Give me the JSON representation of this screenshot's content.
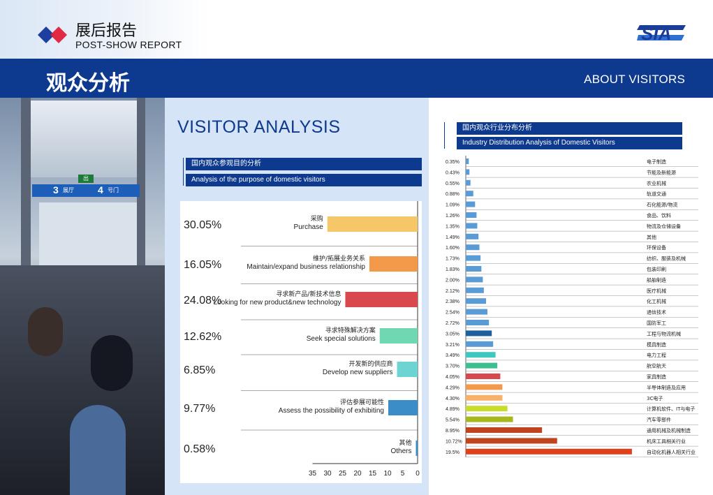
{
  "header": {
    "title_cn": "展后报告",
    "title_en": "POST-SHOW REPORT",
    "logo_text": "SIA"
  },
  "band": {
    "title_cn": "观众分析",
    "title_en": "ABOUT VISITORS"
  },
  "photo": {
    "sign_left": "3",
    "sign_left_label": "展厅",
    "sign_right": "4",
    "sign_right_label": "号门",
    "exit_text": "出"
  },
  "left": {
    "title": "VISITOR ANALYSIS",
    "heading_cn": "国内观众参观目的分析",
    "heading_en": "Analysis of the purpose of domestic visitors"
  },
  "right": {
    "heading_cn": "国内观众行业分布分析",
    "heading_en": "Industry Distribution Analysis of Domestic Visitors"
  },
  "chart_data": [
    {
      "type": "bar",
      "orientation": "horizontal-reversed",
      "title": "国内观众参观目的分析 / Analysis of the purpose of domestic visitors",
      "categories_cn": [
        "采购",
        "维护/拓展业务关系",
        "寻求新产品/新技术信息",
        "寻求特殊解决方案",
        "开发新的供应商",
        "评估参展可能性",
        "其他"
      ],
      "categories_en": [
        "Purchase",
        "Maintain/expand business relationship",
        "Looking for new product&new technology",
        "Seek special solutions",
        "Develop new suppliers",
        "Assess the possibility of exhibiting",
        "Others"
      ],
      "values": [
        30.05,
        16.05,
        24.08,
        12.62,
        6.85,
        9.77,
        0.58
      ],
      "labels": [
        "30.05%",
        "16.05%",
        "24.08%",
        "12.62%",
        "6.85%",
        "9.77%",
        "0.58%"
      ],
      "colors": [
        "#f6c768",
        "#f2994a",
        "#d9484c",
        "#6fd8b2",
        "#6dd3d3",
        "#3b8dc8",
        "#3b8dc8"
      ],
      "xticks": [
        "35",
        "30",
        "25",
        "20",
        "15",
        "10",
        "5",
        "0"
      ],
      "xlim": [
        35,
        0
      ],
      "grid": false
    },
    {
      "type": "bar",
      "orientation": "horizontal",
      "title": "国内观众行业分布分析 / Industry Distribution Analysis of Domestic Visitors",
      "categories": [
        "电子制造",
        "节能及新能源",
        "农业机械",
        "轨道交通",
        "石化能源/物流",
        "食品、饮料",
        "物流及仓储设备",
        "其他",
        "环保设备",
        "纺织、服装及机械",
        "包装印刷",
        "船舶制造",
        "医疗机械",
        "化工机械",
        "通信技术",
        "国防军工",
        "工程与物流机械",
        "模具制造",
        "电力工程",
        "航空航天",
        "家具制造",
        "半导体制造及应用",
        "3C电子",
        "计算机软件、IT与电子",
        "汽车零部件",
        "通用机械及机械制造",
        "机床工具相关行业",
        "自动化机器人相关行业"
      ],
      "labels": [
        "0.35%",
        "0.43%",
        "0.55%",
        "0.88%",
        "1.09%",
        "1.26%",
        "1.35%",
        "1.49%",
        "1.60%",
        "1.73%",
        "1.83%",
        "2.00%",
        "2.12%",
        "2.38%",
        "2.54%",
        "2.72%",
        "3.05%",
        "3.21%",
        "3.49%",
        "3.70%",
        "4.05%",
        "4.29%",
        "4.30%",
        "4.89%",
        "5.54%",
        "8.95%",
        "10.72%",
        "19.5%"
      ],
      "values": [
        0.35,
        0.43,
        0.55,
        0.88,
        1.09,
        1.26,
        1.35,
        1.49,
        1.6,
        1.73,
        1.83,
        2.0,
        2.12,
        2.38,
        2.54,
        2.72,
        3.05,
        3.21,
        3.49,
        3.7,
        4.05,
        4.29,
        4.3,
        4.89,
        5.54,
        8.95,
        10.72,
        19.5
      ],
      "colors": [
        "#5b9bd5",
        "#5b9bd5",
        "#5b9bd5",
        "#5b9bd5",
        "#5b9bd5",
        "#5b9bd5",
        "#5b9bd5",
        "#5b9bd5",
        "#5b9bd5",
        "#5b9bd5",
        "#5b9bd5",
        "#5b9bd5",
        "#5b9bd5",
        "#5b9bd5",
        "#5b9bd5",
        "#5b9bd5",
        "#1f5f9e",
        "#5b9bd5",
        "#3fc8c0",
        "#3fbf8f",
        "#d9484c",
        "#f2994a",
        "#f6b26b",
        "#c8dc2c",
        "#a6b81e",
        "#c0441e",
        "#c0441e",
        "#e0401a"
      ],
      "grid": false
    }
  ]
}
